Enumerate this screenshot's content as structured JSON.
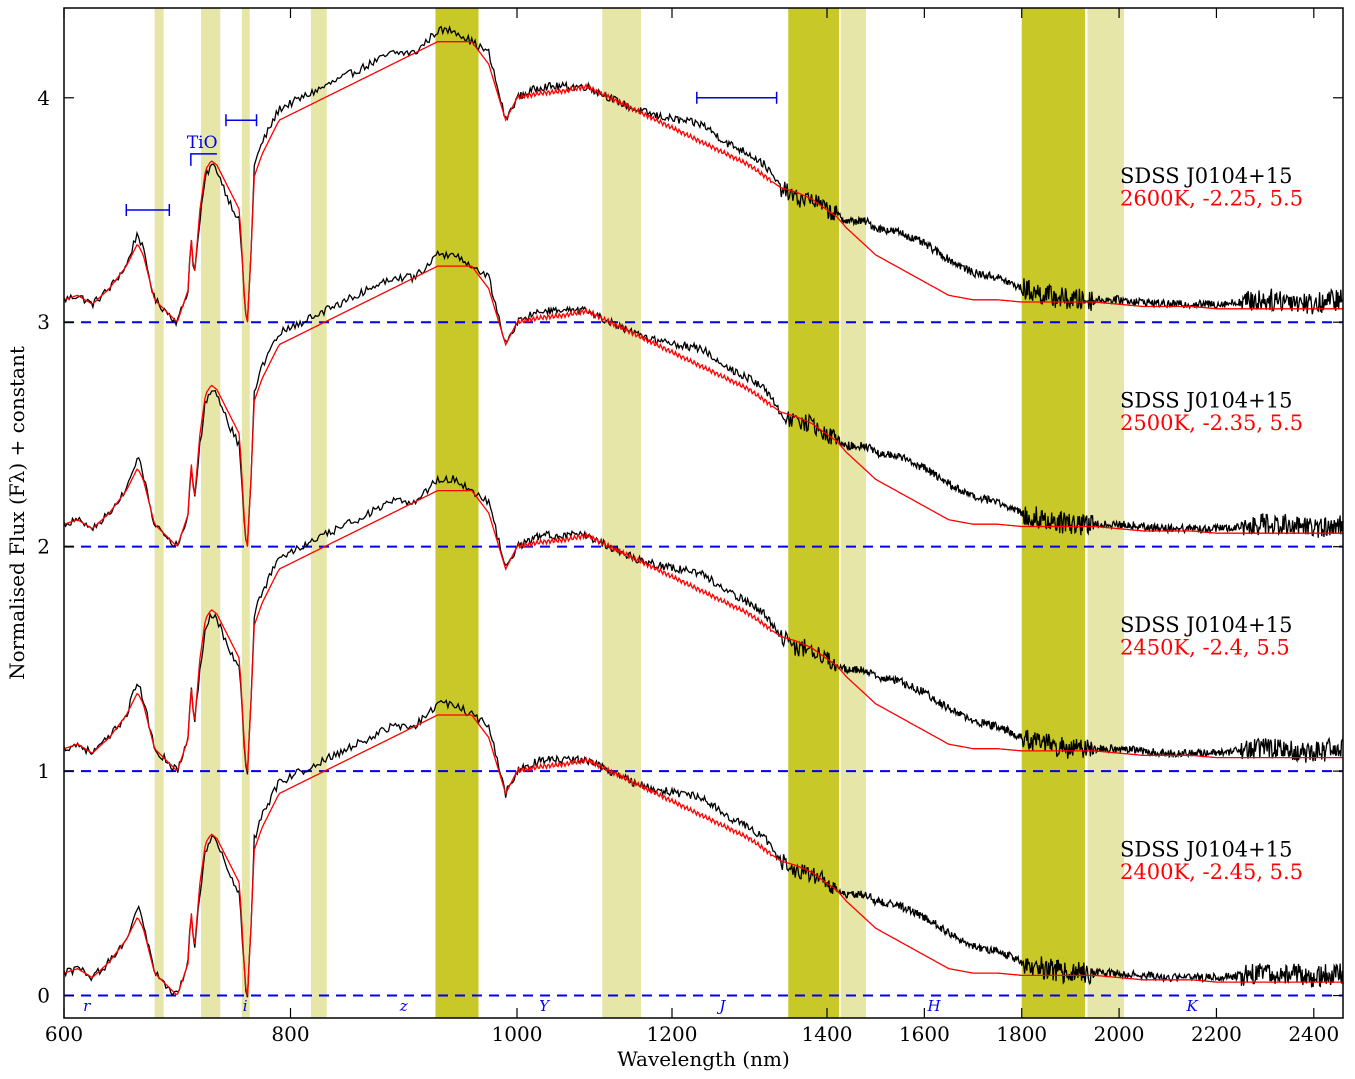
{
  "chart_data": {
    "type": "line",
    "xlabel": "Wavelength (nm)",
    "ylabel": "Normalised Flux (Fλ) + constant",
    "xlim": [
      600,
      2460
    ],
    "ylim": [
      -0.1,
      4.4
    ],
    "grid": false,
    "x_axis_breaks": "axis is piecewise-linear: 600–1000 nm compressed left section, 1000–1400 nm, 1400–2460 nm",
    "x_ticks": [
      {
        "value": 600,
        "label": "600"
      },
      {
        "value": 800,
        "label": "800"
      },
      {
        "value": 1000,
        "label": "1000"
      },
      {
        "value": 1200,
        "label": "1200"
      },
      {
        "value": 1400,
        "label": "1400"
      },
      {
        "value": 1600,
        "label": "1600"
      },
      {
        "value": 1800,
        "label": "1800"
      },
      {
        "value": 2000,
        "label": "2000"
      },
      {
        "value": 2200,
        "label": "2200"
      },
      {
        "value": 2400,
        "label": "2400"
      }
    ],
    "y_ticks": [
      {
        "value": 0,
        "label": "0"
      },
      {
        "value": 1,
        "label": "1"
      },
      {
        "value": 2,
        "label": "2"
      },
      {
        "value": 3,
        "label": "3"
      },
      {
        "value": 4,
        "label": "4"
      }
    ],
    "bands_strong": [
      [
        928,
        966
      ],
      [
        1350,
        1425
      ],
      [
        1800,
        1930
      ]
    ],
    "bands_light": [
      [
        680,
        688
      ],
      [
        721,
        738
      ],
      [
        757,
        764
      ],
      [
        818,
        832
      ],
      [
        1110,
        1160
      ],
      [
        1428,
        1480
      ],
      [
        1935,
        2010
      ]
    ],
    "filter_labels": [
      {
        "label": "r",
        "x": 620
      },
      {
        "label": "i",
        "x": 760
      },
      {
        "label": "z",
        "x": 900
      },
      {
        "label": "Y",
        "x": 1035
      },
      {
        "label": "J",
        "x": 1265
      },
      {
        "label": "H",
        "x": 1620
      },
      {
        "label": "K",
        "x": 2150
      }
    ],
    "annotations": [
      {
        "type": "range-bar",
        "x0": 655,
        "x1": 693,
        "y": 3.5
      },
      {
        "type": "range-bar",
        "x0": 743,
        "x1": 770,
        "y": 3.9
      },
      {
        "type": "range-bar",
        "x0": 1232,
        "x1": 1335,
        "y": 4.0
      },
      {
        "type": "bracket",
        "label": "TiO",
        "x0": 712,
        "x1": 735,
        "y": 3.75
      }
    ],
    "series": [
      {
        "name": "SDSS J0104+15",
        "model": "2600K, -2.25, 5.5",
        "offset": 3
      },
      {
        "name": "SDSS J0104+15",
        "model": "2500K, -2.35, 5.5",
        "offset": 2
      },
      {
        "name": "SDSS J0104+15",
        "model": "2450K, -2.4, 5.5",
        "offset": 1
      },
      {
        "name": "SDSS J0104+15",
        "model": "2400K, -2.45, 5.5",
        "offset": 0
      }
    ],
    "spectrum_profile": {
      "x": [
        600,
        612,
        625,
        640,
        655,
        665,
        670,
        680,
        690,
        700,
        710,
        712,
        715,
        720,
        725,
        730,
        735,
        745,
        755,
        760,
        762,
        765,
        768,
        775,
        790,
        810,
        830,
        850,
        870,
        890,
        910,
        930,
        945,
        960,
        975,
        990,
        1000,
        1030,
        1060,
        1090,
        1120,
        1150,
        1180,
        1210,
        1240,
        1270,
        1300,
        1320,
        1340,
        1360,
        1380,
        1400,
        1420,
        1440,
        1460,
        1480,
        1500,
        1550,
        1600,
        1650,
        1700,
        1750,
        1800,
        1850,
        1900,
        1950,
        2000,
        2050,
        2100,
        2150,
        2200,
        2250,
        2300,
        2350,
        2400,
        2440,
        2460
      ],
      "observed": [
        0.1,
        0.12,
        0.08,
        0.15,
        0.25,
        0.4,
        0.32,
        0.1,
        0.05,
        0.0,
        0.15,
        0.4,
        0.2,
        0.45,
        0.65,
        0.7,
        0.68,
        0.55,
        0.45,
        0.05,
        0.0,
        0.3,
        0.7,
        0.8,
        0.95,
        1.0,
        1.05,
        1.1,
        1.15,
        1.2,
        1.2,
        1.3,
        1.3,
        1.25,
        1.2,
        0.9,
        1.0,
        1.05,
        1.05,
        1.05,
        1.0,
        0.95,
        0.92,
        0.9,
        0.88,
        0.8,
        0.75,
        0.7,
        0.6,
        0.55,
        0.55,
        0.5,
        0.48,
        0.45,
        0.45,
        0.45,
        0.42,
        0.4,
        0.35,
        0.28,
        0.22,
        0.2,
        0.15,
        0.12,
        0.1,
        0.1,
        0.1,
        0.09,
        0.08,
        0.08,
        0.08,
        0.09,
        0.1,
        0.1,
        0.08,
        0.1,
        0.1
      ],
      "model": [
        0.1,
        0.12,
        0.08,
        0.15,
        0.25,
        0.35,
        0.3,
        0.1,
        0.05,
        0.0,
        0.15,
        0.4,
        0.2,
        0.5,
        0.68,
        0.72,
        0.7,
        0.6,
        0.5,
        0.05,
        0.0,
        0.3,
        0.65,
        0.75,
        0.9,
        0.95,
        1.0,
        1.05,
        1.1,
        1.15,
        1.2,
        1.25,
        1.25,
        1.25,
        1.15,
        0.9,
        1.0,
        1.02,
        1.03,
        1.05,
        1.0,
        0.95,
        0.9,
        0.85,
        0.8,
        0.75,
        0.7,
        0.65,
        0.6,
        0.58,
        0.55,
        0.5,
        0.47,
        0.42,
        0.38,
        0.34,
        0.3,
        0.24,
        0.18,
        0.12,
        0.1,
        0.1,
        0.09,
        0.09,
        0.09,
        0.09,
        0.08,
        0.07,
        0.07,
        0.07,
        0.06,
        0.06,
        0.06,
        0.06,
        0.06,
        0.06,
        0.06
      ]
    },
    "colors": {
      "observed": "#000000",
      "model": "#ff0000",
      "baseline": "#0000ee",
      "annotation": "#0000ee",
      "band_strong": "#c8c828",
      "band_light": "#e6e6a8"
    }
  }
}
